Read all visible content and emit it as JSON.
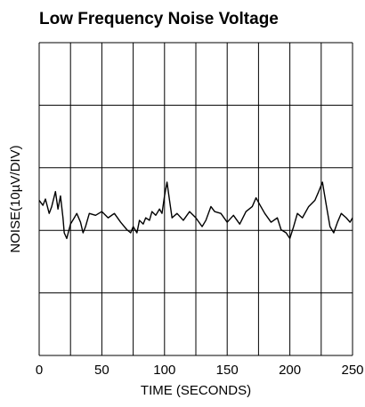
{
  "chart_data": {
    "type": "line",
    "title": "Low Frequency Noise Voltage",
    "xlabel": "TIME (SECONDS)",
    "ylabel": "NOISE(10µV/DIV)",
    "x": [
      0,
      3,
      5,
      8,
      10,
      13,
      15,
      17,
      19,
      20,
      22,
      25,
      28,
      30,
      33,
      35,
      37,
      40,
      45,
      50,
      55,
      60,
      65,
      70,
      73,
      75,
      78,
      80,
      83,
      85,
      88,
      90,
      93,
      96,
      98,
      100,
      102,
      104,
      106,
      110,
      115,
      120,
      125,
      130,
      133,
      137,
      140,
      145,
      150,
      155,
      160,
      165,
      170,
      173,
      176,
      180,
      185,
      190,
      193,
      197,
      200,
      203,
      206,
      210,
      215,
      220,
      223,
      226,
      229,
      232,
      235,
      238,
      241,
      245,
      248,
      250
    ],
    "series": [
      {
        "name": "noise",
        "color": "#000000",
        "values": [
          4.8,
          4,
          5,
          2.7,
          3.8,
          6.2,
          3.4,
          5.5,
          2,
          -0.4,
          -1.3,
          1,
          2,
          2.7,
          1.3,
          -0.4,
          0.6,
          2.7,
          2.4,
          3,
          2,
          2.7,
          1.3,
          0.1,
          -0.4,
          0.6,
          -0.4,
          1.6,
          1,
          2,
          1.6,
          3,
          2.4,
          3.4,
          2.7,
          5.5,
          7.7,
          4.8,
          2,
          2.7,
          1.6,
          3,
          2,
          0.6,
          1.6,
          3.8,
          3,
          2.7,
          1.3,
          2.4,
          1,
          3,
          3.8,
          5.2,
          4.1,
          2.7,
          1.3,
          2,
          0.1,
          -0.4,
          -1.3,
          0.6,
          2.7,
          2,
          3.8,
          4.8,
          6.2,
          7.7,
          4.1,
          0.6,
          -0.4,
          1.3,
          2.7,
          2,
          1.3,
          2
        ]
      }
    ],
    "xlim": [
      0,
      250
    ],
    "xticks": [
      0,
      50,
      100,
      150,
      200,
      250
    ],
    "xgrid": [
      0,
      25,
      50,
      75,
      100,
      125,
      150,
      175,
      200,
      225,
      250
    ],
    "ylim": [
      -20,
      30
    ],
    "yticks": [
      -20,
      -10,
      0,
      10,
      20,
      30
    ],
    "grid": true
  }
}
